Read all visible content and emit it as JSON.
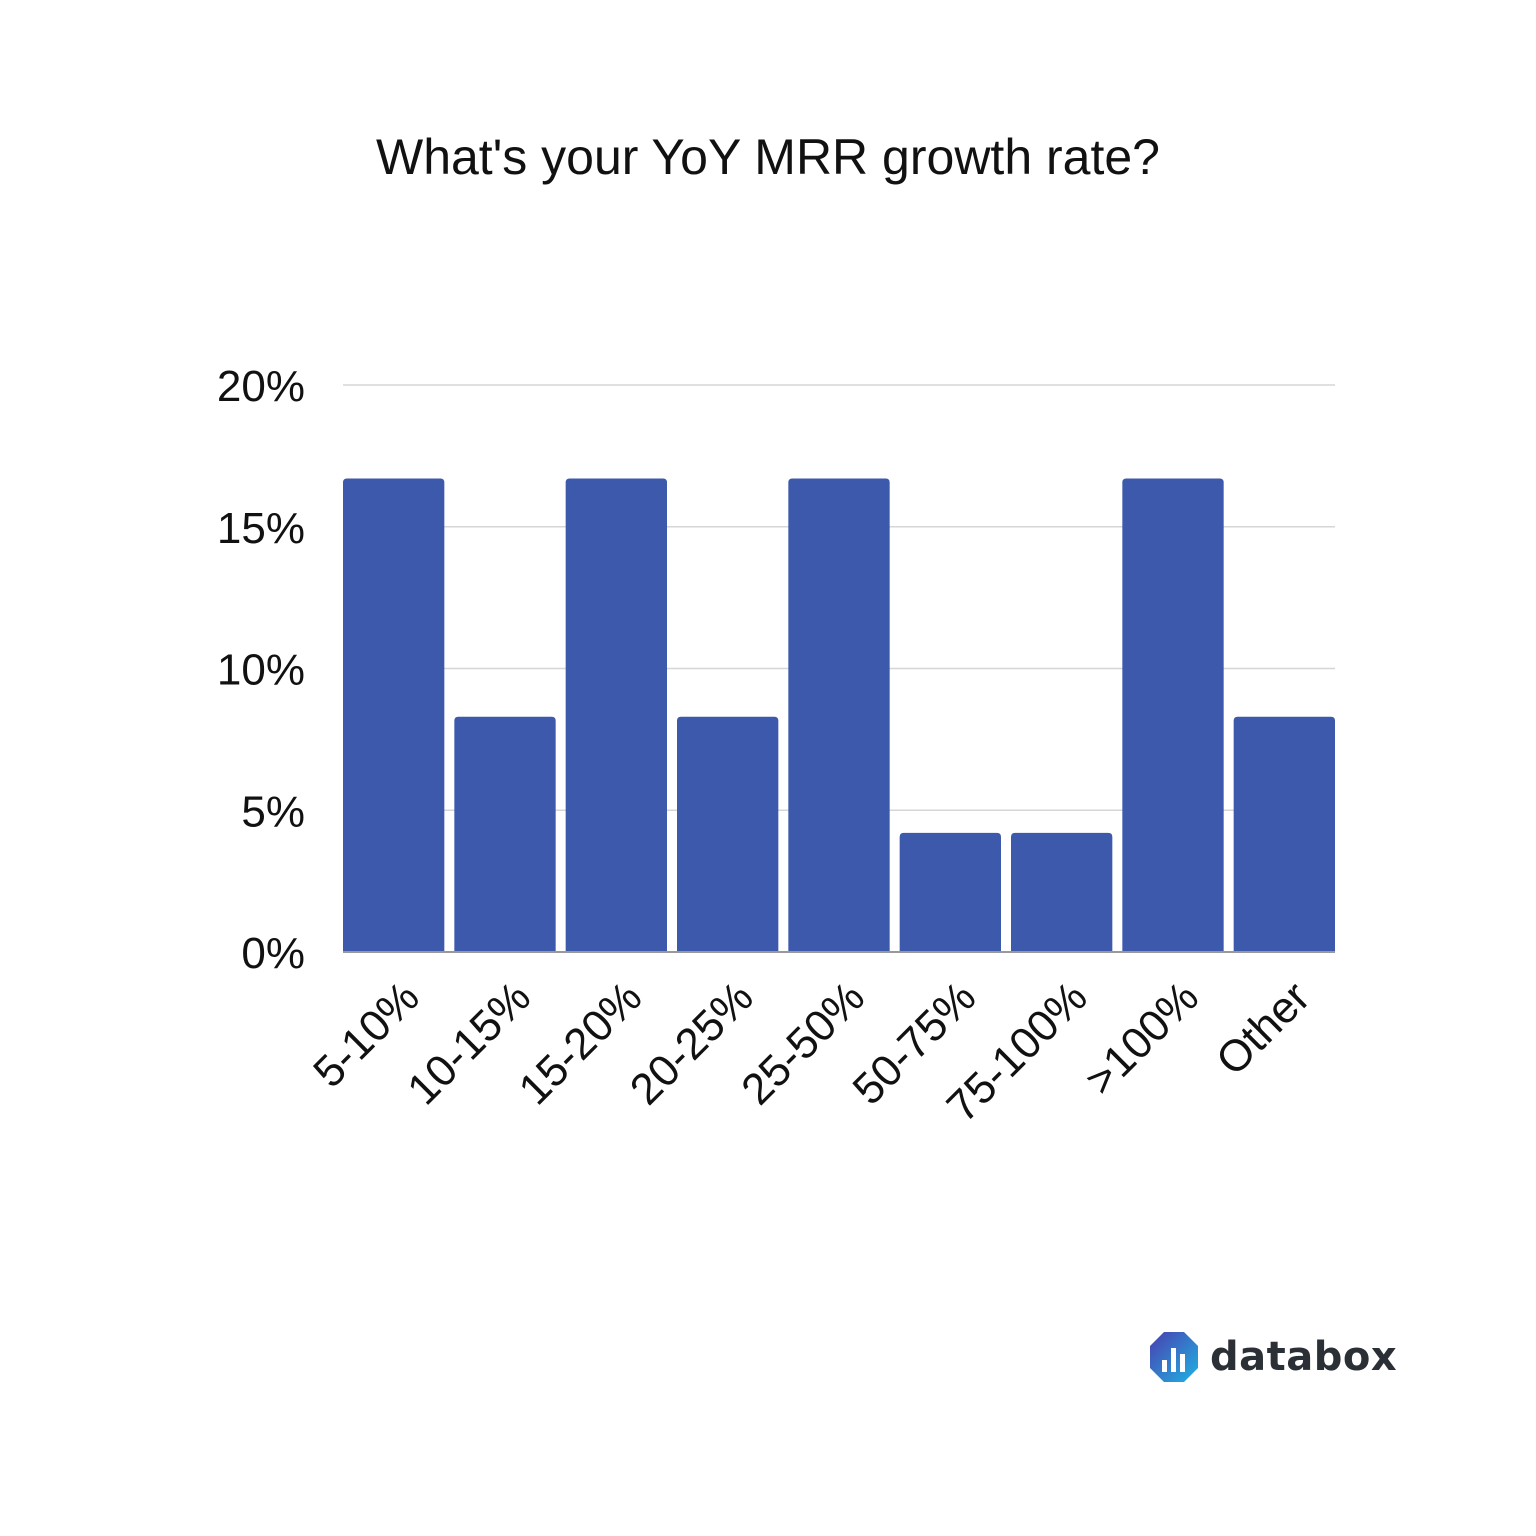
{
  "chart_data": {
    "type": "bar",
    "title": "What's your YoY MRR growth rate?",
    "categories": [
      "5-10%",
      "10-15%",
      "15-20%",
      "20-25%",
      "25-50%",
      "50-75%",
      "75-100%",
      ">100%",
      "Other"
    ],
    "values": [
      16.7,
      8.3,
      16.7,
      8.3,
      16.7,
      4.2,
      4.2,
      16.7,
      8.3
    ],
    "unit": "%",
    "ylim": [
      0,
      20
    ],
    "yticks": [
      "0%",
      "5%",
      "10%",
      "15%",
      "20%"
    ],
    "grid": true,
    "bar_color": "#3d59ab"
  },
  "brand": {
    "name": "databox"
  }
}
